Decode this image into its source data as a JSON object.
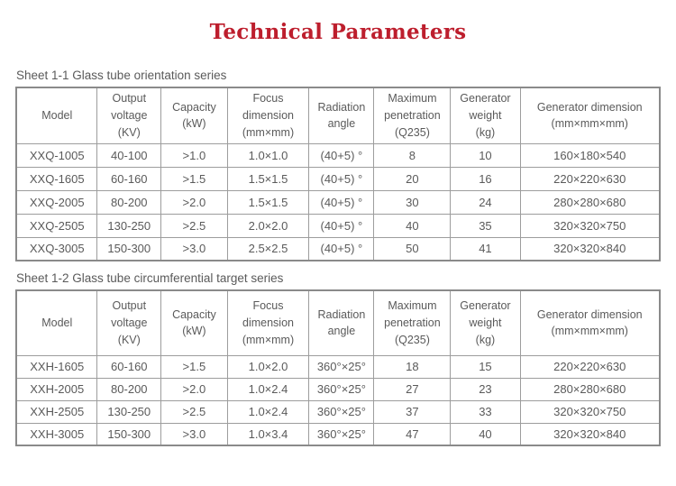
{
  "page": {
    "title": "Technical Parameters",
    "title_color": "#bd1e2d",
    "text_color": "#5a5a5a",
    "border_color": "#8a8a8a"
  },
  "sheets": [
    {
      "label": "Sheet 1-1 Glass tube orientation series",
      "columns": [
        "Model",
        "Output\nvoltage\n(KV)",
        "Capacity\n(kW)",
        "Focus\ndimension\n(mm×mm)",
        "Radiation\nangle",
        "Maximum\npenetration\n(Q235)",
        "Generator\nweight\n(kg)",
        "Generator dimension\n(mm×mm×mm)"
      ],
      "rows": [
        [
          "XXQ-1005",
          "40-100",
          ">1.0",
          "1.0×1.0",
          "(40+5) °",
          "8",
          "10",
          "160×180×540"
        ],
        [
          "XXQ-1605",
          "60-160",
          ">1.5",
          "1.5×1.5",
          "(40+5) °",
          "20",
          "16",
          "220×220×630"
        ],
        [
          "XXQ-2005",
          "80-200",
          ">2.0",
          "1.5×1.5",
          "(40+5) °",
          "30",
          "24",
          "280×280×680"
        ],
        [
          "XXQ-2505",
          "130-250",
          ">2.5",
          "2.0×2.0",
          "(40+5) °",
          "40",
          "35",
          "320×320×750"
        ],
        [
          "XXQ-3005",
          "150-300",
          ">3.0",
          "2.5×2.5",
          "(40+5) °",
          "50",
          "41",
          "320×320×840"
        ]
      ]
    },
    {
      "label": "Sheet 1-2 Glass tube circumferential target series",
      "columns": [
        "Model",
        "Output\nvoltage\n(KV)",
        "Capacity\n(kW)",
        "Focus\ndimension\n(mm×mm)",
        "Radiation\nangle",
        "Maximum\npenetration\n(Q235)",
        "Generator\nweight\n(kg)",
        "Generator dimension\n(mm×mm×mm)"
      ],
      "rows": [
        [
          "XXH-1605",
          "60-160",
          ">1.5",
          "1.0×2.0",
          "360°×25°",
          "18",
          "15",
          "220×220×630"
        ],
        [
          "XXH-2005",
          "80-200",
          ">2.0",
          "1.0×2.4",
          "360°×25°",
          "27",
          "23",
          "280×280×680"
        ],
        [
          "XXH-2505",
          "130-250",
          ">2.5",
          "1.0×2.4",
          "360°×25°",
          "37",
          "33",
          "320×320×750"
        ],
        [
          "XXH-3005",
          "150-300",
          ">3.0",
          "1.0×3.4",
          "360°×25°",
          "47",
          "40",
          "320×320×840"
        ]
      ]
    }
  ]
}
